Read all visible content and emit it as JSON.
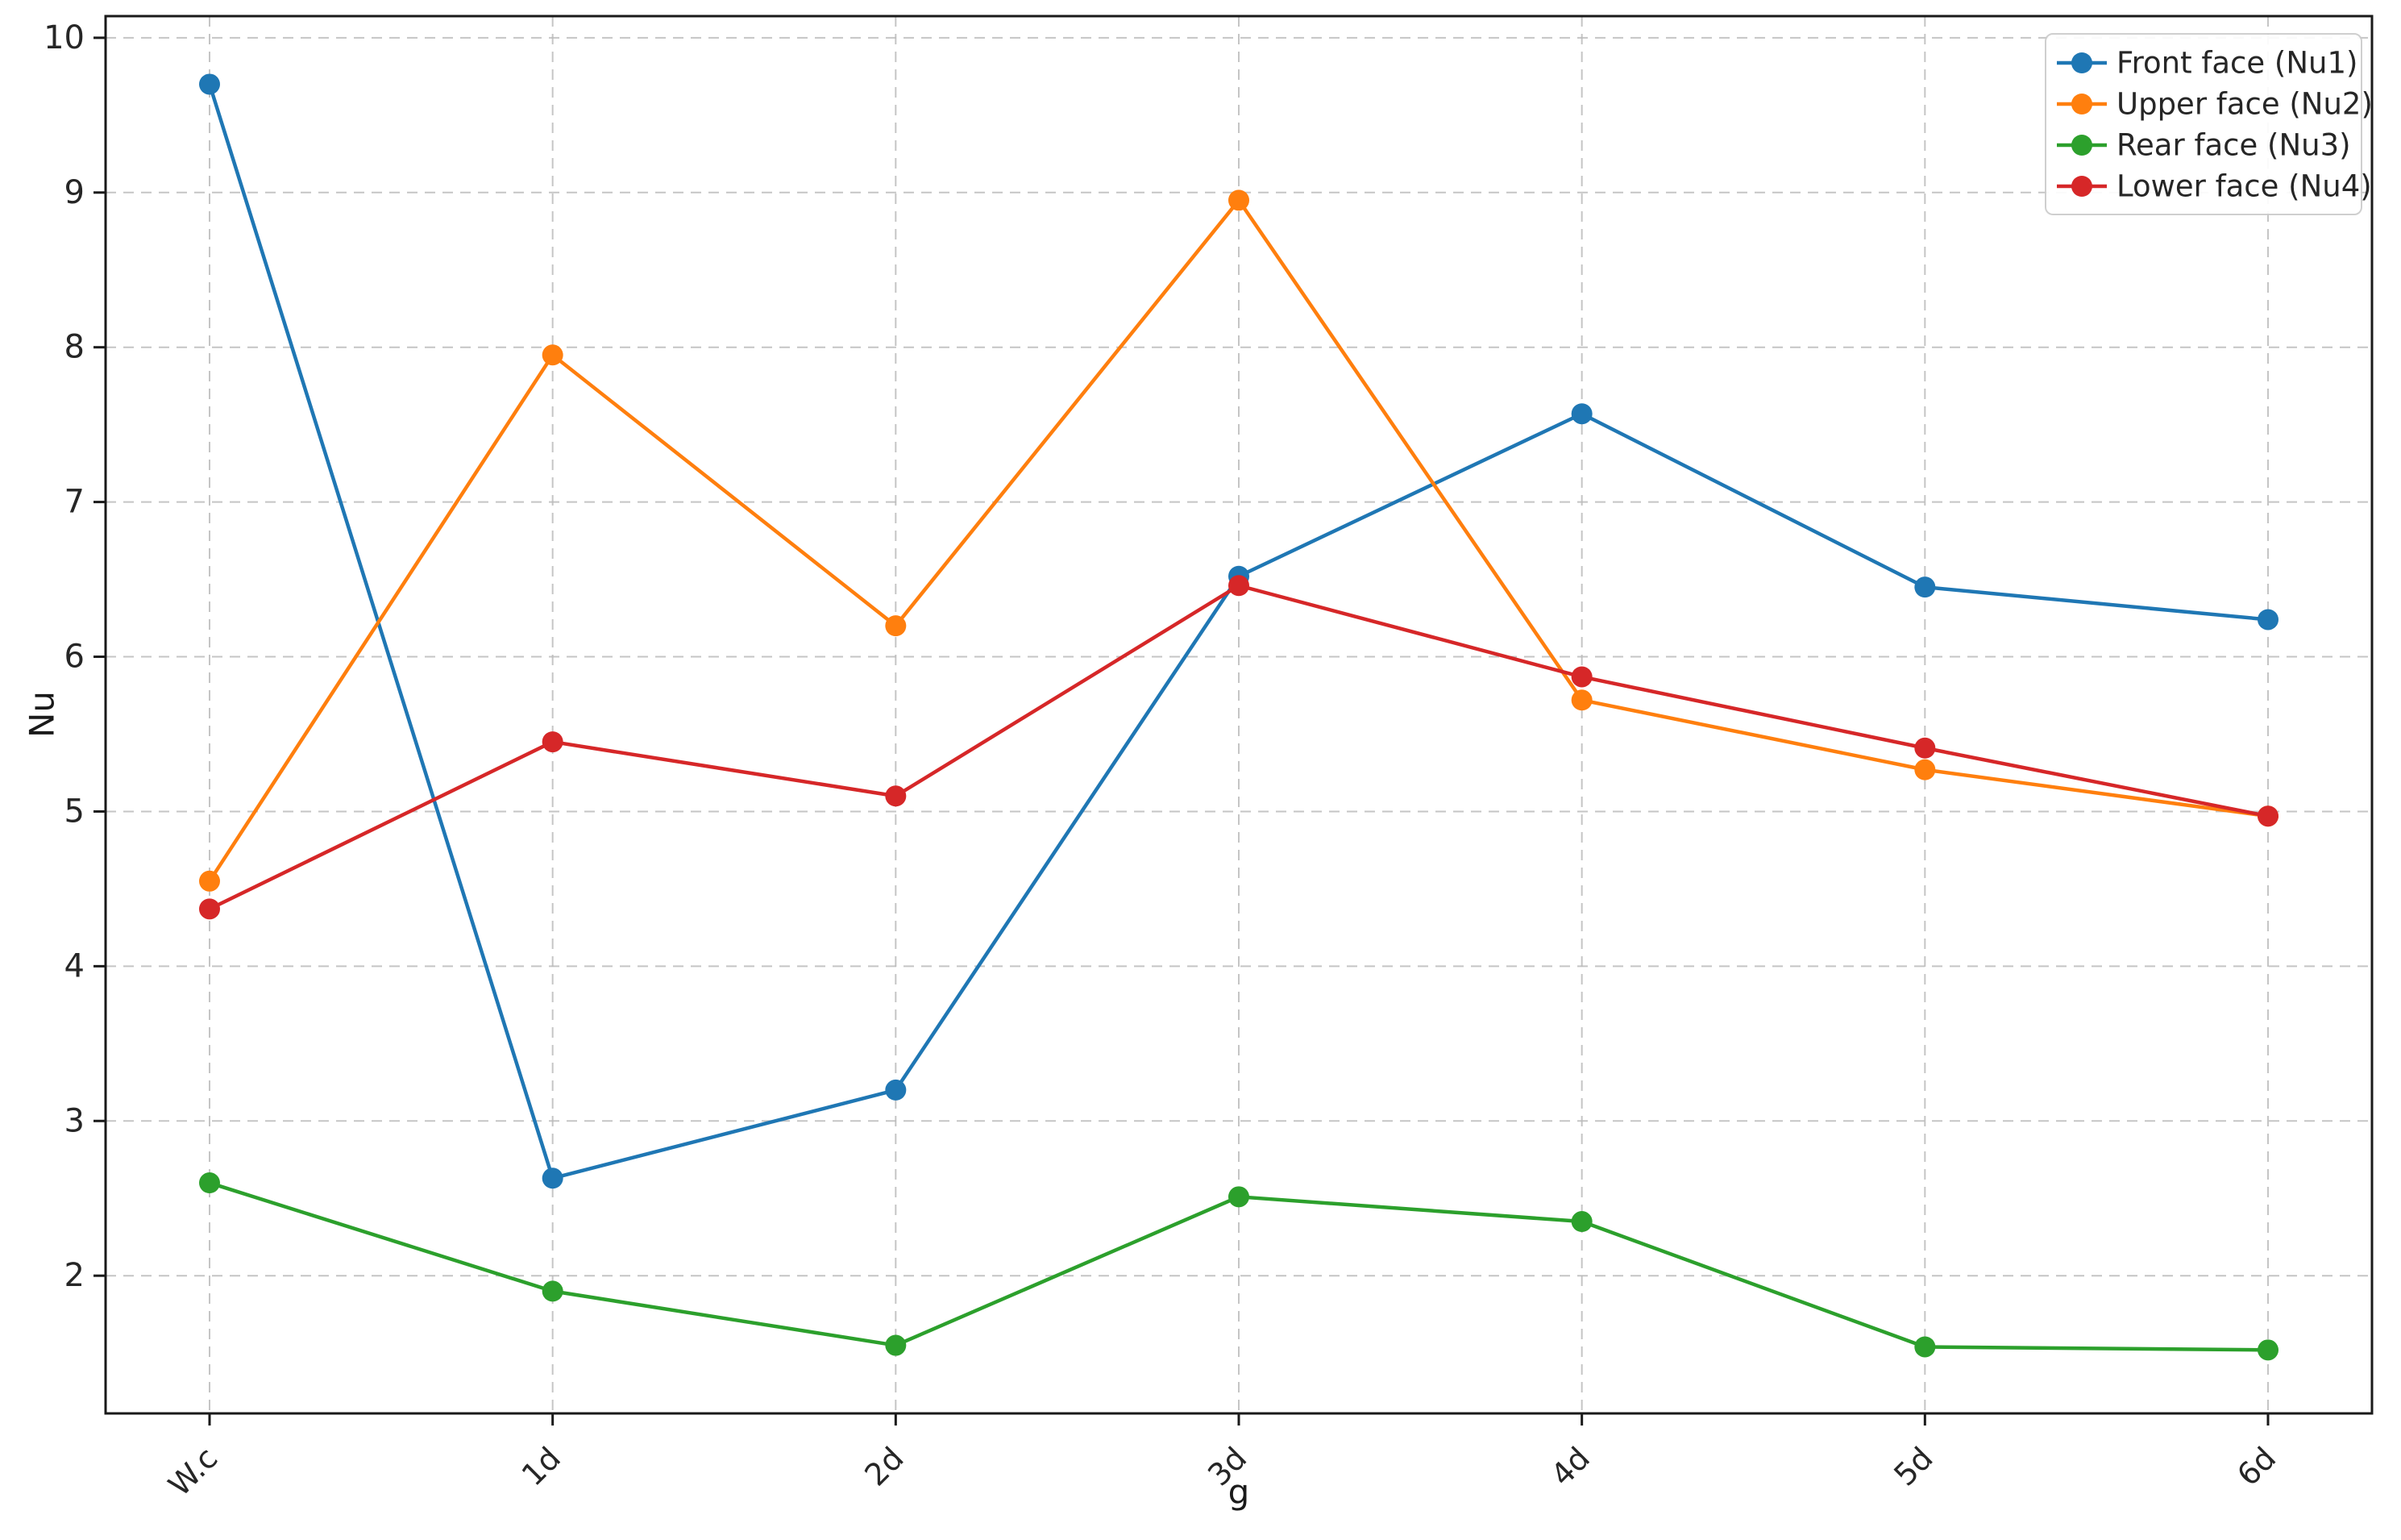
{
  "chart_data": {
    "type": "line",
    "title": "",
    "xlabel": "g",
    "ylabel": "Nu",
    "categories": [
      "W.c",
      "1d",
      "2d",
      "3d",
      "4d",
      "5d",
      "6d"
    ],
    "series": [
      {
        "name": "Front face (Nu1)",
        "color": "#1f77b4",
        "values": [
          9.7,
          2.63,
          3.2,
          6.52,
          7.57,
          6.45,
          6.24
        ]
      },
      {
        "name": "Upper face (Nu2)",
        "color": "#ff7f0e",
        "values": [
          4.55,
          7.95,
          6.2,
          8.95,
          5.72,
          5.27,
          4.97
        ]
      },
      {
        "name": "Rear face (Nu3)",
        "color": "#2ca02c",
        "values": [
          2.6,
          1.9,
          1.55,
          2.51,
          2.35,
          1.54,
          1.52
        ]
      },
      {
        "name": "Lower face (Nu4)",
        "color": "#d62728",
        "values": [
          4.37,
          5.45,
          5.1,
          6.46,
          5.87,
          5.41,
          4.97
        ]
      }
    ],
    "yticks": [
      2,
      3,
      4,
      5,
      6,
      7,
      8,
      9,
      10
    ],
    "ylim": [
      1.11,
      10.14
    ],
    "grid": true,
    "grid_style": "dashed",
    "legend_position": "upper right",
    "marker": "circle",
    "colors": {
      "grid": "#bbbbbb",
      "spine": "#1a1a1a",
      "tick_text": "#262626",
      "legend_border": "#cccccc",
      "legend_bg": "#ffffff"
    }
  }
}
